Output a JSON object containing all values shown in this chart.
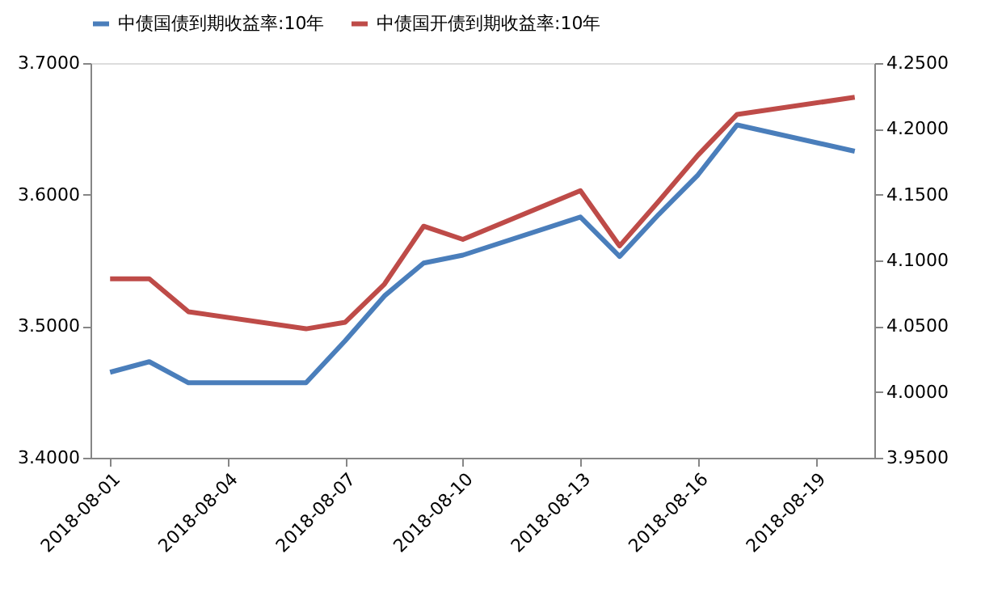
{
  "chart_data": {
    "type": "line",
    "x": [
      "2018-08-01",
      "2018-08-02",
      "2018-08-03",
      "2018-08-06",
      "2018-08-07",
      "2018-08-08",
      "2018-08-09",
      "2018-08-10",
      "2018-08-13",
      "2018-08-14",
      "2018-08-15",
      "2018-08-16",
      "2018-08-17",
      "2018-08-20"
    ],
    "series": [
      {
        "name": "中债国债到期收益率:10年",
        "color": "#4a7ebb",
        "values": [
          3.465,
          3.473,
          3.457,
          3.457,
          3.489,
          3.523,
          3.548,
          3.554,
          3.583,
          3.553,
          3.585,
          3.615,
          3.653,
          3.633
        ]
      },
      {
        "name": "中债国开债到期收益率:10年",
        "color": "#be4b48",
        "axis": "y2",
        "values": [
          4.086,
          4.086,
          4.061,
          4.048,
          4.053,
          4.082,
          4.126,
          4.116,
          4.153,
          4.111,
          4.145,
          4.18,
          4.211,
          4.224
        ]
      }
    ],
    "xlim": [
      "2018-07-31T12:00",
      "2018-08-20T12:00"
    ],
    "xticks": [
      {
        "value": "2018-08-01",
        "label": "2018-08-01"
      },
      {
        "value": "2018-08-04",
        "label": "2018-08-04"
      },
      {
        "value": "2018-08-07",
        "label": "2018-08-07"
      },
      {
        "value": "2018-08-10",
        "label": "2018-08-10"
      },
      {
        "value": "2018-08-13",
        "label": "2018-08-13"
      },
      {
        "value": "2018-08-16",
        "label": "2018-08-16"
      },
      {
        "value": "2018-08-19",
        "label": "2018-08-19"
      }
    ],
    "ylim": [
      3.4,
      3.7
    ],
    "yticks": [
      {
        "value": 3.4,
        "label": "3.4000"
      },
      {
        "value": 3.5,
        "label": "3.5000"
      },
      {
        "value": 3.6,
        "label": "3.6000"
      },
      {
        "value": 3.7,
        "label": "3.7000"
      }
    ],
    "y2lim": [
      3.95,
      4.25
    ],
    "y2ticks": [
      {
        "value": 3.95,
        "label": "3.9500"
      },
      {
        "value": 4.0,
        "label": "4.0000"
      },
      {
        "value": 4.05,
        "label": "4.0500"
      },
      {
        "value": 4.1,
        "label": "4.1000"
      },
      {
        "value": 4.15,
        "label": "4.1500"
      },
      {
        "value": 4.2,
        "label": "4.2000"
      },
      {
        "value": 4.25,
        "label": "4.2500"
      }
    ],
    "legend": "top",
    "grid": false,
    "marker": "none",
    "line_style": "solid"
  }
}
